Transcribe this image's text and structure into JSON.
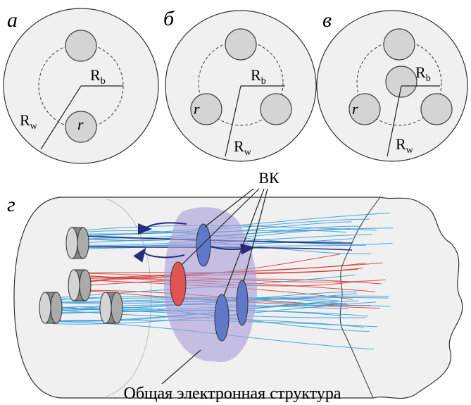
{
  "panels": [
    {
      "label": "а",
      "radius_b": {
        "symbol": "R",
        "subscript": "b"
      },
      "radius_w": {
        "symbol": "R",
        "subscript": "w"
      },
      "radius_r": "r"
    },
    {
      "label": "б",
      "radius_b": {
        "symbol": "R",
        "subscript": "b"
      },
      "radius_w": {
        "symbol": "R",
        "subscript": "w"
      },
      "radius_r": "r"
    },
    {
      "label": "в",
      "radius_b": {
        "symbol": "R",
        "subscript": "b"
      },
      "radius_w": {
        "symbol": "R",
        "subscript": "w"
      },
      "radius_r": "r"
    }
  ],
  "panel_d": {
    "label": "г",
    "callout": "ВК",
    "caption": "Общая электронная структура"
  }
}
